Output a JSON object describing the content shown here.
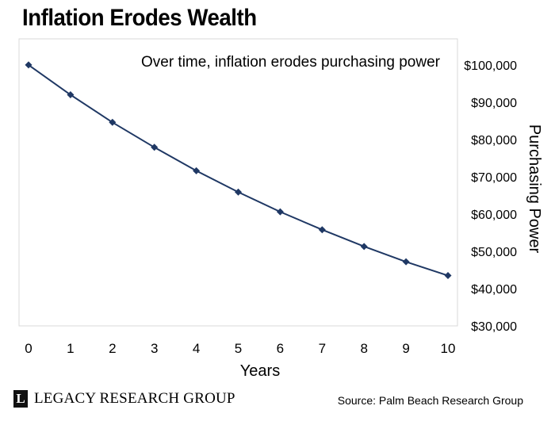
{
  "title": "Inflation Erodes Wealth",
  "footer": {
    "logo_letter": "L",
    "logo_text": "LEGACY RESEARCH GROUP",
    "source": "Source: Palm Beach Research Group"
  },
  "chart_data": {
    "type": "line",
    "annotation": "Over time, inflation erodes purchasing power",
    "xlabel": "Years",
    "ylabel": "Purchasing Power",
    "x": [
      0,
      1,
      2,
      3,
      4,
      5,
      6,
      7,
      8,
      9,
      10
    ],
    "x_tick_labels": [
      "0",
      "1",
      "2",
      "3",
      "4",
      "5",
      "6",
      "7",
      "8",
      "9",
      "10"
    ],
    "y_ticks": [
      30000,
      40000,
      50000,
      60000,
      70000,
      80000,
      90000,
      100000
    ],
    "y_tick_labels": [
      "$30,000",
      "$40,000",
      "$50,000",
      "$60,000",
      "$70,000",
      "$80,000",
      "$90,000",
      "$100,000"
    ],
    "ylim": [
      30000,
      107000
    ],
    "y_axis_side": "right",
    "grid": false,
    "series": [
      {
        "values": [
          100000,
          92000,
          84600,
          77900,
          71600,
          65900,
          60600,
          55800,
          51300,
          47200,
          43500
        ],
        "color": "#1f3864",
        "marker": "diamond"
      }
    ]
  }
}
